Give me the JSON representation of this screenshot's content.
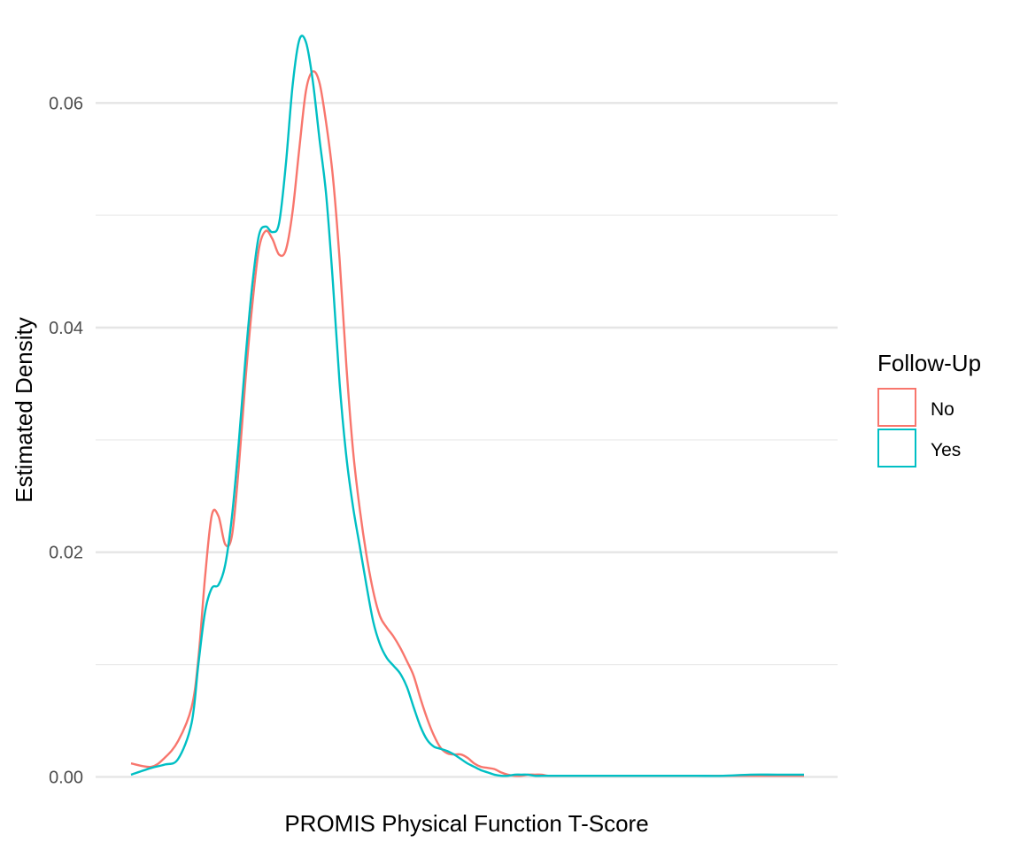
{
  "chart_data": {
    "type": "line",
    "xlabel": "PROMIS Physical Function T-Score",
    "ylabel": "Estimated Density",
    "xlim": [
      0,
      100
    ],
    "ylim": [
      -0.0002,
      0.0668
    ],
    "y_ticks": [
      0.0,
      0.02,
      0.04,
      0.06
    ],
    "y_tick_labels": [
      "0.00",
      "0.02",
      "0.04",
      "0.06"
    ],
    "y_minor_gridlines": [
      0.01,
      0.03,
      0.05
    ],
    "x_tick_labels": [],
    "grid": true,
    "legend": {
      "title": "Follow-Up",
      "placement": "right"
    },
    "series": [
      {
        "name": "No",
        "color": "#F8766D",
        "x": [
          0,
          3,
          5,
          7,
          9,
          10,
          11,
          12,
          13,
          14,
          15,
          16,
          17,
          18,
          19,
          20,
          21,
          22,
          23,
          24,
          25,
          26,
          27,
          28,
          29,
          30,
          31,
          32,
          33,
          34,
          35,
          36,
          37,
          38,
          39,
          40,
          41,
          42,
          43,
          44,
          45,
          46,
          47,
          48,
          49,
          50,
          51,
          52,
          53,
          54,
          55,
          56,
          57,
          58,
          59,
          60,
          61,
          62,
          64,
          66,
          68,
          70,
          73,
          76,
          80,
          84,
          88,
          92,
          96,
          100
        ],
        "y": [
          0.0012,
          0.0009,
          0.0017,
          0.0032,
          0.0062,
          0.0105,
          0.0178,
          0.0233,
          0.0232,
          0.0207,
          0.0215,
          0.0275,
          0.0353,
          0.0419,
          0.047,
          0.0486,
          0.0479,
          0.0465,
          0.0469,
          0.0503,
          0.0559,
          0.0611,
          0.0628,
          0.0618,
          0.0582,
          0.0534,
          0.046,
          0.0366,
          0.029,
          0.0238,
          0.0197,
          0.0165,
          0.0143,
          0.0133,
          0.0125,
          0.0115,
          0.0103,
          0.009,
          0.007,
          0.0052,
          0.0037,
          0.0026,
          0.0021,
          0.002,
          0.002,
          0.0017,
          0.0012,
          0.0009,
          0.0008,
          0.0007,
          0.0004,
          0.0002,
          0.0001,
          0.0001,
          0.0002,
          0.0002,
          0.0002,
          0.0001,
          0.0001,
          0.0001,
          0.0001,
          0.0001,
          0.0001,
          0.0001,
          0.0001,
          0.0001,
          0.0001,
          0.0001,
          0.0001,
          0.0001
        ]
      },
      {
        "name": "Yes",
        "color": "#00BFC4",
        "x": [
          0,
          3,
          5,
          7,
          9,
          10,
          11,
          12,
          13,
          14,
          15,
          16,
          17,
          18,
          19,
          20,
          21,
          22,
          23,
          24,
          25,
          26,
          27,
          28,
          29,
          30,
          31,
          32,
          33,
          34,
          35,
          36,
          37,
          38,
          39,
          40,
          41,
          42,
          43,
          44,
          45,
          46,
          47,
          48,
          49,
          50,
          51,
          52,
          53,
          54,
          55,
          56,
          57,
          58,
          59,
          60,
          61,
          62,
          64,
          66,
          68,
          70,
          73,
          76,
          80,
          84,
          88,
          92,
          96,
          100
        ],
        "y": [
          0.0002,
          0.0008,
          0.0011,
          0.0016,
          0.0048,
          0.01,
          0.0147,
          0.0168,
          0.0171,
          0.0189,
          0.0232,
          0.0297,
          0.0372,
          0.0437,
          0.0482,
          0.049,
          0.0485,
          0.0493,
          0.0545,
          0.0615,
          0.0656,
          0.0654,
          0.062,
          0.0568,
          0.0518,
          0.044,
          0.035,
          0.0285,
          0.024,
          0.0205,
          0.017,
          0.0138,
          0.0118,
          0.0106,
          0.0099,
          0.0092,
          0.008,
          0.0062,
          0.0045,
          0.0033,
          0.0027,
          0.0025,
          0.0023,
          0.002,
          0.0016,
          0.0012,
          0.0009,
          0.0006,
          0.0004,
          0.0002,
          0.0001,
          0.0001,
          0.0002,
          0.0002,
          0.0002,
          0.0001,
          0.0001,
          0.0001,
          0.0001,
          0.0001,
          0.0001,
          0.0001,
          0.0001,
          0.0001,
          0.0001,
          0.0001,
          0.0001,
          0.0002,
          0.0002,
          0.0002
        ]
      }
    ]
  }
}
